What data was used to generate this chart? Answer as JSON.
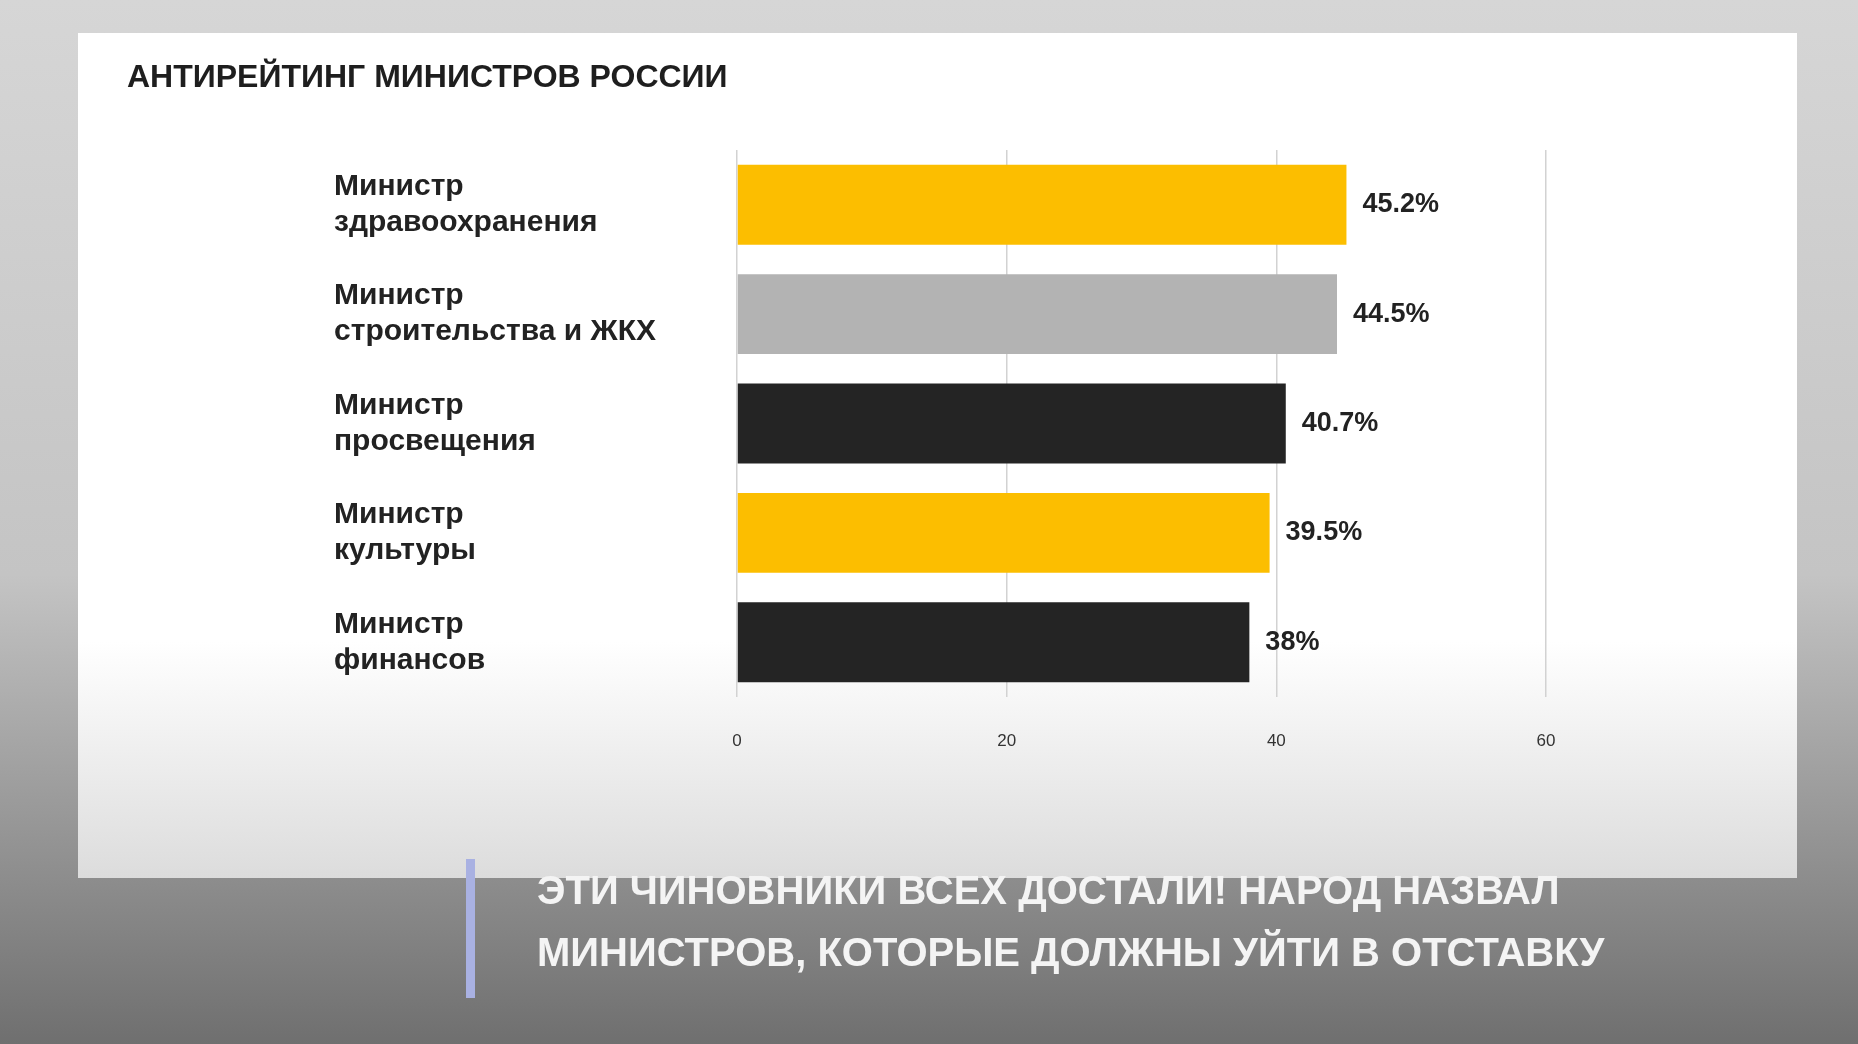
{
  "chart_data": {
    "type": "bar",
    "orientation": "horizontal",
    "title": "АНТИРЕЙТИНГ МИНИСТРОВ РОССИИ",
    "categories": [
      "Министр\nздравоохранения",
      "Министр\nстроительства и ЖКХ",
      "Министр\nпросвещения",
      "Министр\nкультуры",
      "Министр\nфинансов"
    ],
    "values": [
      45.2,
      44.5,
      40.7,
      39.5,
      38
    ],
    "colors": [
      "#fcbe00",
      "#b3b3b3",
      "#242424",
      "#fcbe00",
      "#242424"
    ],
    "value_labels": [
      "45.2%",
      "44.5%",
      "40.7%",
      "39.5%",
      "38%"
    ],
    "xlim": [
      0,
      60
    ],
    "xticks": [
      0,
      20,
      40,
      60
    ],
    "grid": "x",
    "annotations": [
      "ЭТИ ЧИНОВНИКИ ВСЕХ ДОСТАЛИ! НАРОД НАЗВАЛ МИНИСТРОВ, КОТОРЫЕ ДОЛЖНЫ УЙТИ В ОТСТАВКУ"
    ]
  }
}
